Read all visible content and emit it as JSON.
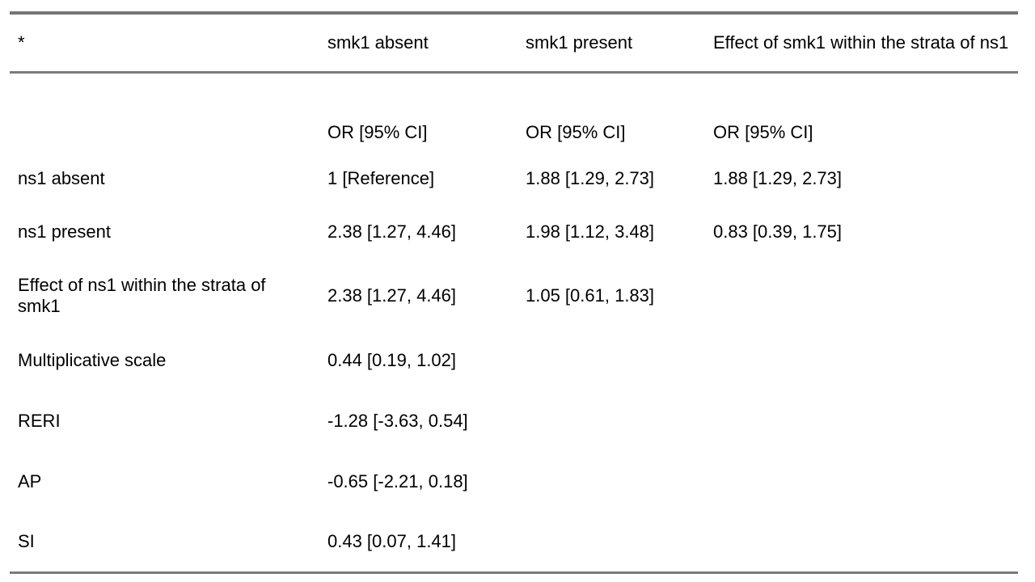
{
  "page": {
    "background_color": "#ffffff",
    "text_color": "#000000",
    "rule_color": "#7a7a7a"
  },
  "table": {
    "description": "Interaction analysis table of ns1 and smk1 with odds ratios and 95% confidence intervals",
    "footnote_marker": "*",
    "columns": {
      "col1": "*",
      "col2": "smk1 absent",
      "col3": "smk1 present",
      "col4": "Effect of smk1 within the strata of ns1"
    },
    "measure_row": {
      "label": "",
      "values": [
        "OR [95% CI]",
        "OR [95% CI]",
        "OR [95% CI]"
      ]
    },
    "rows": [
      {
        "label": "ns1 absent",
        "values": [
          "1 [Reference]",
          "1.88 [1.29, 2.73]",
          "1.88 [1.29, 2.73]"
        ]
      },
      {
        "label": "ns1 present",
        "values": [
          "2.38 [1.27, 4.46]",
          "1.98 [1.12, 3.48]",
          ""
        ]
      },
      {
        "label": "Effect of ns1 within the strata of smk1",
        "values": [
          "2.38 [1.27, 4.46]",
          "1.05 [0.61, 1.83]",
          ""
        ]
      },
      {
        "label": "Multiplicative scale",
        "values": [
          "0.44 [0.19, 1.02]",
          "",
          ""
        ]
      },
      {
        "label": "RERI",
        "values": [
          "-1.28 [-3.63, 0.54]",
          "",
          ""
        ]
      },
      {
        "label": "AP",
        "values": [
          "-0.65 [-2.21, 0.18]",
          "",
          ""
        ]
      },
      {
        "label": "SI",
        "values": [
          "0.43 [0.07, 1.41]",
          "",
          ""
        ]
      }
    ],
    "row_2_col4_value": "0.83 [0.39, 1.75]"
  }
}
